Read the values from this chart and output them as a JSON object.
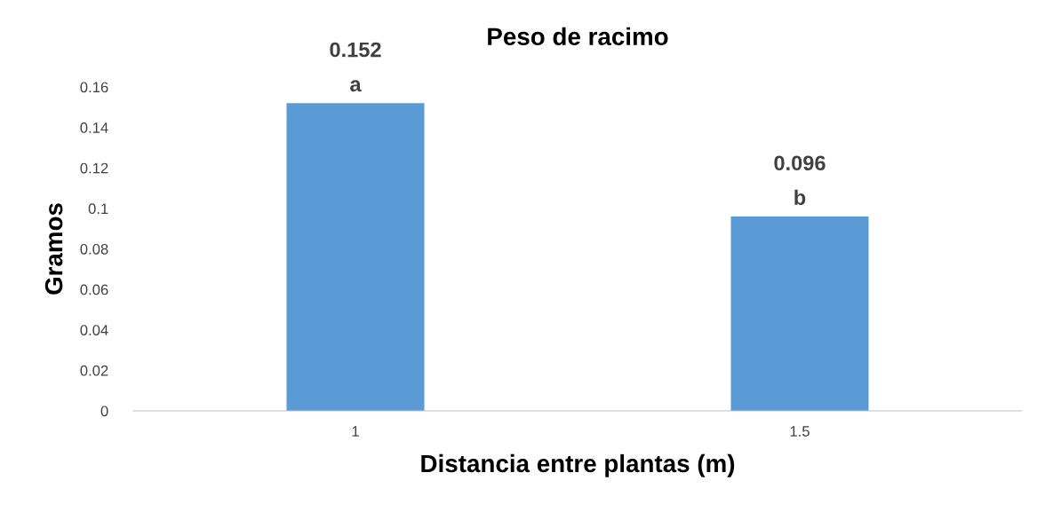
{
  "chart_data": {
    "type": "bar",
    "title": "Peso de racimo",
    "xlabel": "Distancia entre plantas (m)",
    "ylabel": "Gramos",
    "categories": [
      "1",
      "1.5"
    ],
    "values": [
      0.152,
      0.096
    ],
    "value_labels": [
      "0.152",
      "0.096"
    ],
    "color": "#5b9bd5",
    "ylim": [
      0,
      0.16
    ],
    "yticks": [
      0,
      0.02,
      0.04,
      0.06,
      0.08,
      0.1,
      0.12,
      0.14,
      0.16
    ],
    "grid": false,
    "legend": false,
    "annotations": [
      {
        "text": "a",
        "x": "1",
        "y": 0.152
      },
      {
        "text": "b",
        "x": "1.5",
        "y": 0.096
      }
    ]
  }
}
